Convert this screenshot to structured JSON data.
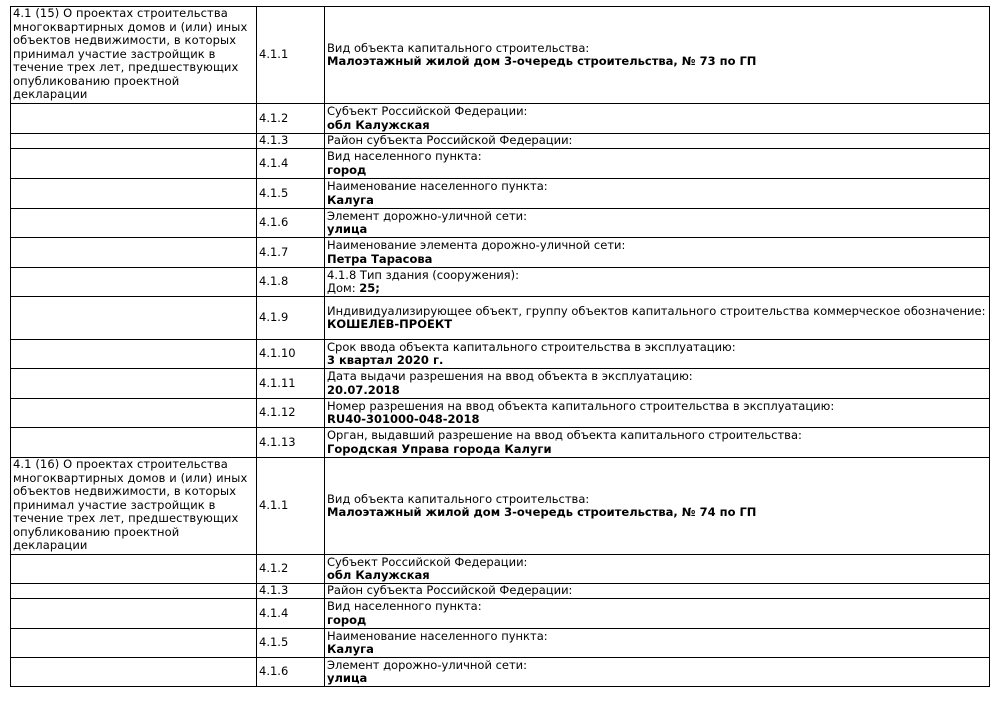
{
  "sections": [
    {
      "title": "4.1 (15) О проектах строительства многоквартирных домов и (или) иных объектов недвижимости, в которых принимал участие застройщик в течение трех лет, предшествующих опубликованию проектной декларации",
      "rows": [
        {
          "code": "4.1.1",
          "label": "Вид объекта капитального строительства:",
          "value": "Малоэтажный жилой дом 3-очередь строительства, № 73 по ГП"
        },
        {
          "code": "4.1.2",
          "label": "Субъект Российской Федерации:",
          "value": "обл Калужская"
        },
        {
          "code": "4.1.3",
          "label": "Район субъекта Российской Федерации:",
          "value": ""
        },
        {
          "code": "4.1.4",
          "label": "Вид населенного пункта:",
          "value": "город"
        },
        {
          "code": "4.1.5",
          "label": "Наименование населенного пункта:",
          "value": "Калуга"
        },
        {
          "code": "4.1.6",
          "label": "Элемент дорожно-уличной сети:",
          "value": "улица"
        },
        {
          "code": "4.1.7",
          "label": "Наименование элемента дорожно-уличной сети:",
          "value": "Петра Тарасова"
        },
        {
          "code": "4.1.8",
          "label": "4.1.8 Тип здания (сооружения):",
          "label2": "Дом:",
          "value": "25;"
        },
        {
          "code": "4.1.9",
          "label": "Индивидуализирующее объект, группу объектов капитального строительства коммерческое обозначение:",
          "value": "КОШЕЛЕВ-ПРОЕКТ"
        },
        {
          "code": "4.1.10",
          "label": "Срок ввода объекта капитального строительства в эксплуатацию:",
          "value": "3 квартал 2020 г."
        },
        {
          "code": "4.1.11",
          "label": "Дата выдачи разрешения на ввод объекта в эксплуатацию:",
          "value": "20.07.2018"
        },
        {
          "code": "4.1.12",
          "label": "Номер разрешения на ввод объекта капитального строительства в эксплуатацию:",
          "value": "RU40-301000-048-2018"
        },
        {
          "code": "4.1.13",
          "label": "Орган, выдавший разрешение на ввод объекта капитального строительства:",
          "value": "Городская Управа города Калуги"
        }
      ]
    },
    {
      "title": "4.1 (16) О проектах строительства многоквартирных домов и (или) иных объектов недвижимости, в которых принимал участие застройщик в течение трех лет, предшествующих опубликованию проектной декларации",
      "rows": [
        {
          "code": "4.1.1",
          "label": "Вид объекта капитального строительства:",
          "value": "Малоэтажный жилой дом 3-очередь строительства, № 74 по ГП"
        },
        {
          "code": "4.1.2",
          "label": "Субъект Российской Федерации:",
          "value": "обл Калужская"
        },
        {
          "code": "4.1.3",
          "label": "Район субъекта Российской Федерации:",
          "value": ""
        },
        {
          "code": "4.1.4",
          "label": "Вид населенного пункта:",
          "value": "город"
        },
        {
          "code": "4.1.5",
          "label": "Наименование населенного пункта:",
          "value": "Калуга"
        },
        {
          "code": "4.1.6",
          "label": "Элемент дорожно-уличной сети:",
          "value": "улица"
        }
      ]
    }
  ]
}
